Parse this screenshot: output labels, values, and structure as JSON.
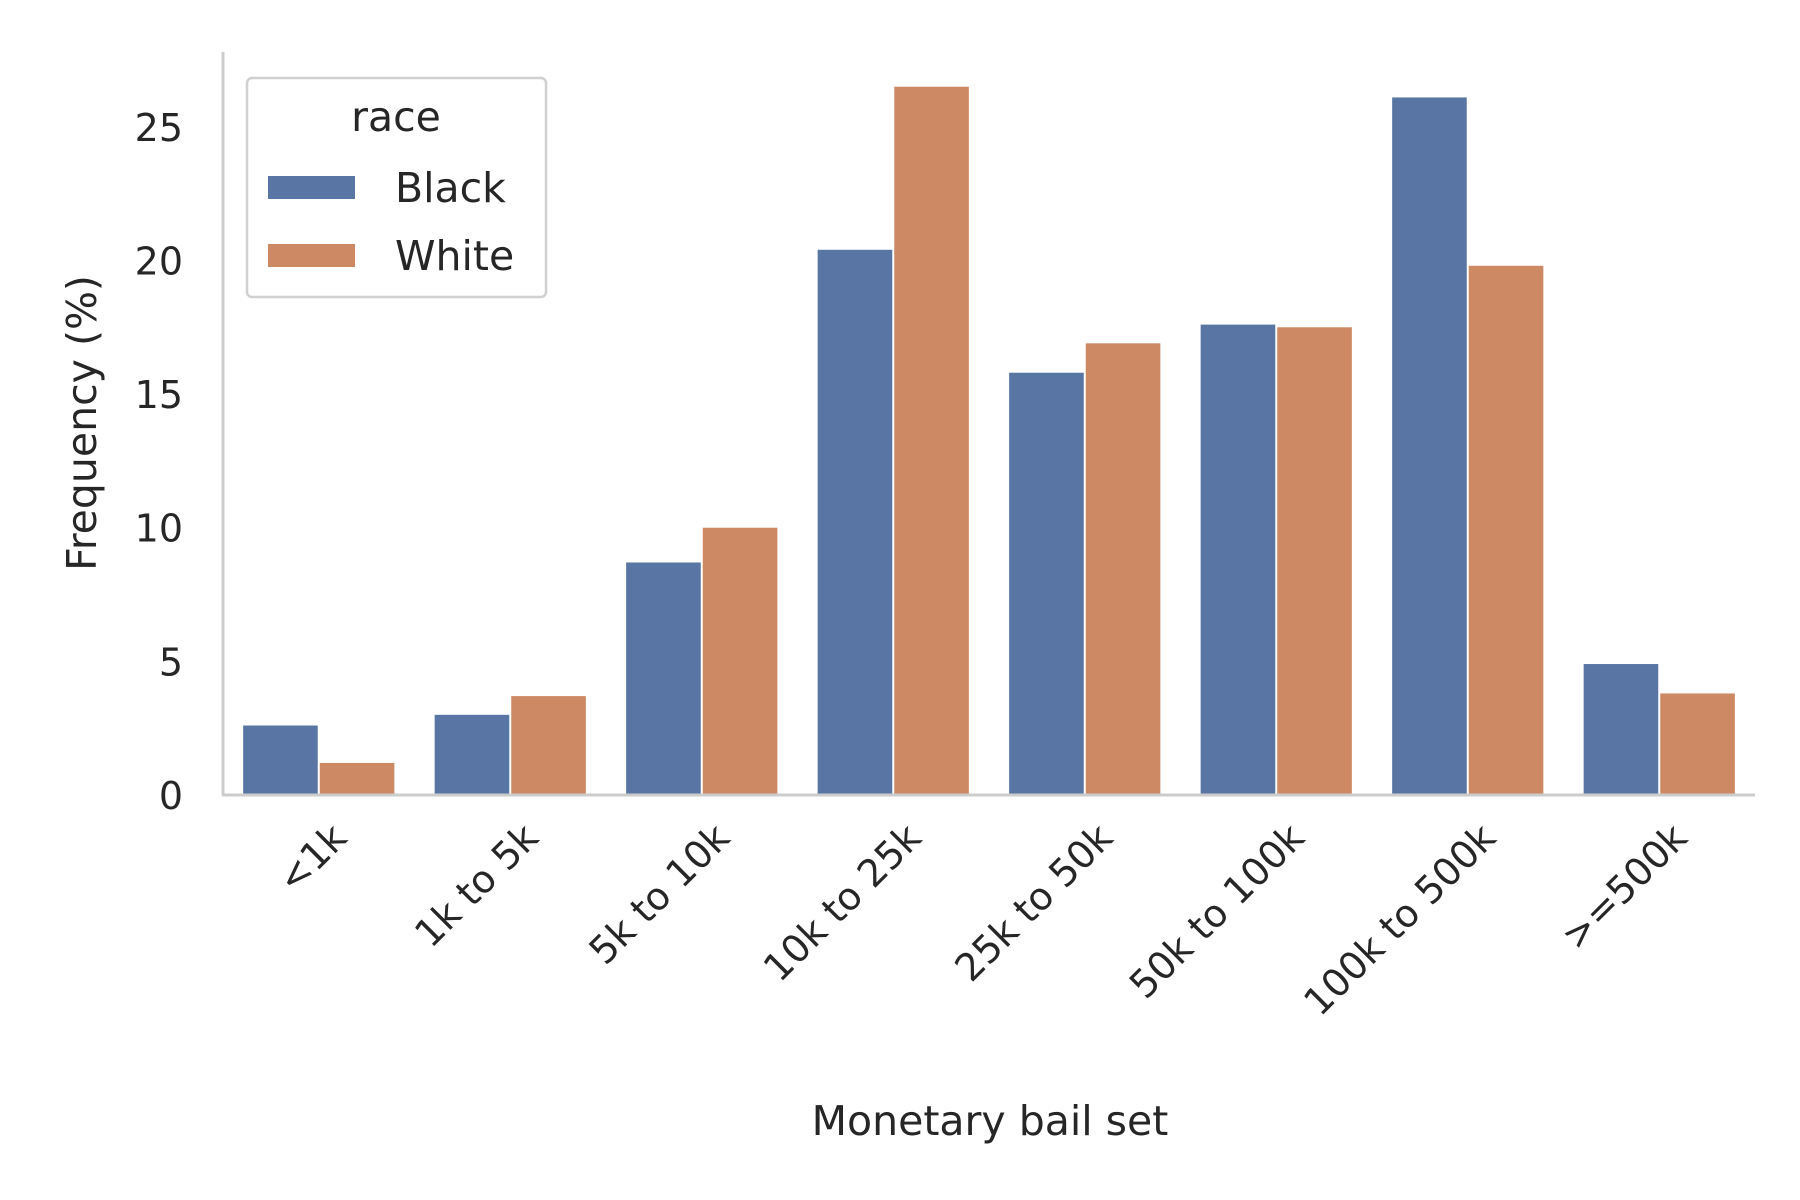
{
  "chart_data": {
    "type": "bar",
    "title": "",
    "xlabel": "Monetary bail set",
    "ylabel": "Frequency (%)",
    "categories": [
      "<1k",
      "1k to 5k",
      "5k to 10k",
      "10k to 25k",
      "25k to 50k",
      "50k to 100k",
      "100k to 500k",
      ">=500k"
    ],
    "series": [
      {
        "name": "Black",
        "color": "#5875a4",
        "values": [
          2.6,
          3.0,
          8.7,
          20.4,
          15.8,
          17.6,
          26.1,
          4.9
        ]
      },
      {
        "name": "White",
        "color": "#cc8963",
        "values": [
          1.2,
          3.7,
          10.0,
          26.5,
          16.9,
          17.5,
          19.8,
          3.8
        ]
      }
    ],
    "ylim": [
      0,
      27.8
    ],
    "yticks": [
      "0",
      "5",
      "10",
      "15",
      "20",
      "25"
    ],
    "legend": {
      "title": "race",
      "position": "top-left"
    },
    "grid": false
  }
}
